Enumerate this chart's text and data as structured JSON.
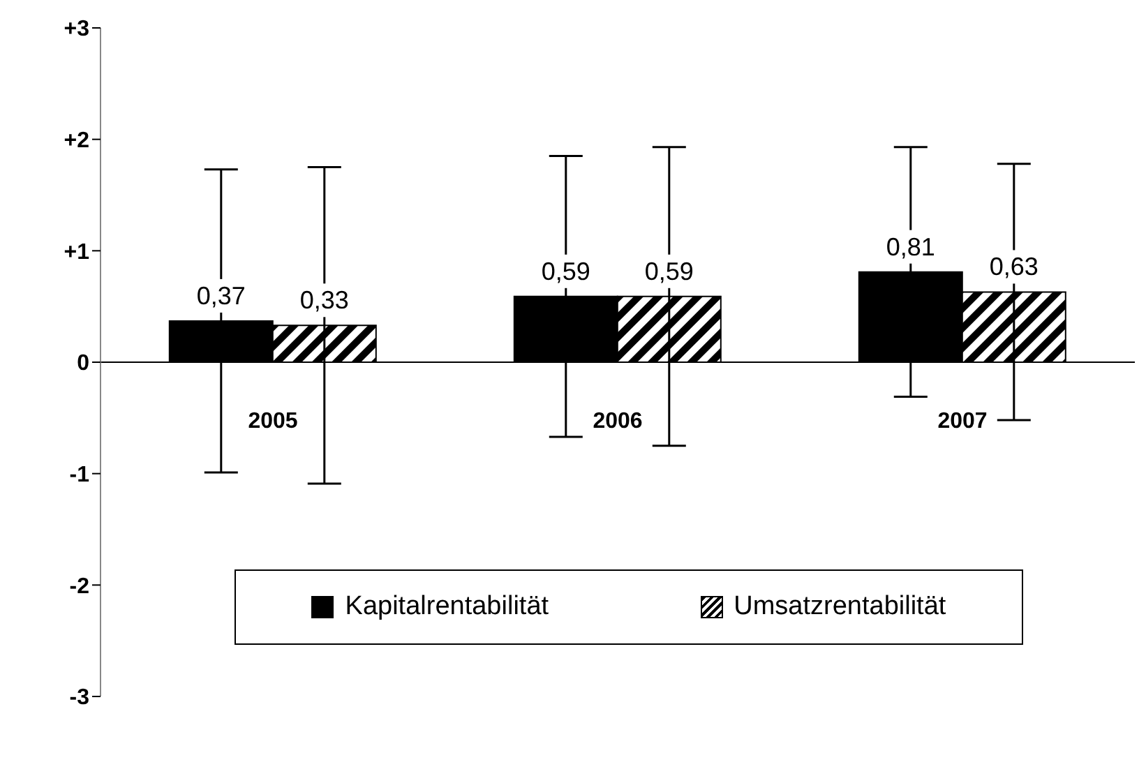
{
  "chart_data": {
    "type": "bar",
    "categories": [
      "2005",
      "2006",
      "2007"
    ],
    "series": [
      {
        "name": "Kapitalrentabilität",
        "color": "#000000",
        "values": [
          0.37,
          0.59,
          0.81
        ],
        "value_labels": [
          "0,37",
          "0,59",
          "0,81"
        ],
        "errors": [
          1.36,
          1.26,
          1.12
        ]
      },
      {
        "name": "Umsatzrentabilität",
        "color": "#000000",
        "values": [
          0.33,
          0.59,
          0.63
        ],
        "value_labels": [
          "0,33",
          "0,59",
          "0,63"
        ],
        "errors": [
          1.42,
          1.34,
          1.15
        ]
      }
    ],
    "ylim": [
      -3,
      3
    ],
    "yticks": [
      {
        "value": -3,
        "label": "-3"
      },
      {
        "value": -2,
        "label": "-2"
      },
      {
        "value": -1,
        "label": "-1"
      },
      {
        "value": 0,
        "label": "0"
      },
      {
        "value": 1,
        "label": "+1"
      },
      {
        "value": 2,
        "label": "+2"
      },
      {
        "value": 3,
        "label": "+3"
      }
    ],
    "grid": false,
    "legend": "bottom"
  }
}
